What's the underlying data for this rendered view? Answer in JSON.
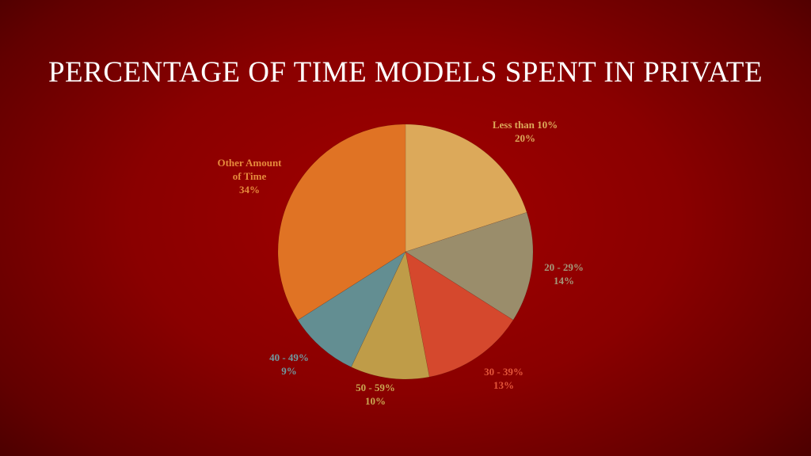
{
  "slide": {
    "title": "PERCENTAGE OF TIME MODELS SPENT IN PRIVATE"
  },
  "chart_data": {
    "type": "pie",
    "title": "PERCENTAGE OF TIME MODELS SPENT IN PRIVATE",
    "legend": "none",
    "slices": [
      {
        "label": [
          "Less than 10%"
        ],
        "percent_text": "20%",
        "value": 20,
        "color": "#dca95a",
        "label_color": "#dca95a"
      },
      {
        "label": [
          "20 - 29%"
        ],
        "percent_text": "14%",
        "value": 14,
        "color": "#9a8d6b",
        "label_color": "#a3987a"
      },
      {
        "label": [
          "30 - 39%"
        ],
        "percent_text": "13%",
        "value": 13,
        "color": "#d5482d",
        "label_color": "#e2553a"
      },
      {
        "label": [
          "50 - 59%"
        ],
        "percent_text": "10%",
        "value": 10,
        "color": "#bf9c48",
        "label_color": "#c9a752"
      },
      {
        "label": [
          "40 - 49%"
        ],
        "percent_text": "9%",
        "value": 9,
        "color": "#638e92",
        "label_color": "#6f9aa0"
      },
      {
        "label": [
          "Other Amount",
          "of Time"
        ],
        "percent_text": "34%",
        "value": 34,
        "color": "#e07324",
        "label_color": "#e58a3c"
      }
    ]
  }
}
